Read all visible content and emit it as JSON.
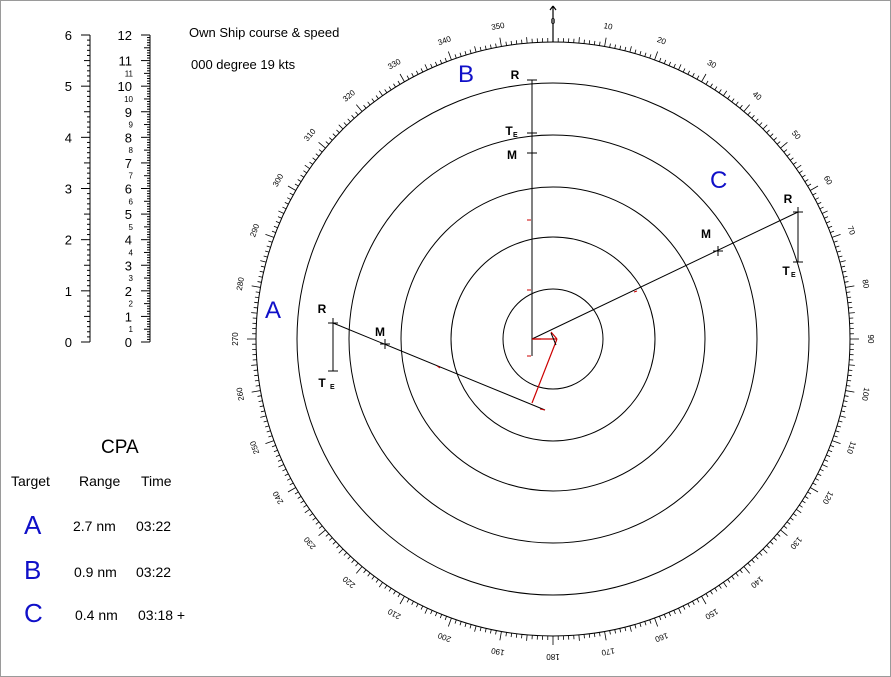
{
  "own_ship": {
    "title": "Own Ship course & speed",
    "course_speed": "000 degree  19 kts"
  },
  "scales": {
    "left": {
      "labels": [
        "0",
        "1",
        "2",
        "3",
        "4",
        "5",
        "6"
      ],
      "max": 6
    },
    "right": {
      "labels": [
        "0",
        "1",
        "2",
        "3",
        "4",
        "5",
        "6",
        "7",
        "8",
        "9",
        "10",
        "11",
        "12"
      ],
      "max": 12
    }
  },
  "cpa": {
    "title": "CPA",
    "headers": [
      "Target",
      "Range",
      "Time"
    ],
    "rows": [
      {
        "target": "A",
        "range": "2.7 nm",
        "time": "03:22"
      },
      {
        "target": "B",
        "range": "0.9 nm",
        "time": "03:22"
      },
      {
        "target": "C",
        "range": "0.4 nm",
        "time": "03:18 +"
      }
    ]
  },
  "plot": {
    "bearing_labels": [
      "0",
      "10",
      "20",
      "30",
      "40",
      "50",
      "60",
      "70",
      "80",
      "90",
      "100",
      "110",
      "120",
      "130",
      "140",
      "150",
      "160",
      "170",
      "180",
      "190",
      "200",
      "210",
      "220",
      "230",
      "240",
      "250",
      "260",
      "270",
      "280",
      "290",
      "300",
      "310",
      "320",
      "330",
      "340",
      "350"
    ],
    "targets": [
      {
        "name": "A",
        "points": [
          "R",
          "M",
          "TE"
        ]
      },
      {
        "name": "B",
        "points": [
          "R",
          "TE",
          "M"
        ]
      },
      {
        "name": "C",
        "points": [
          "R",
          "M",
          "TE"
        ]
      }
    ],
    "colors": {
      "line": "#000000",
      "target_label": "#1010c8",
      "vector": "#cc0000"
    }
  }
}
